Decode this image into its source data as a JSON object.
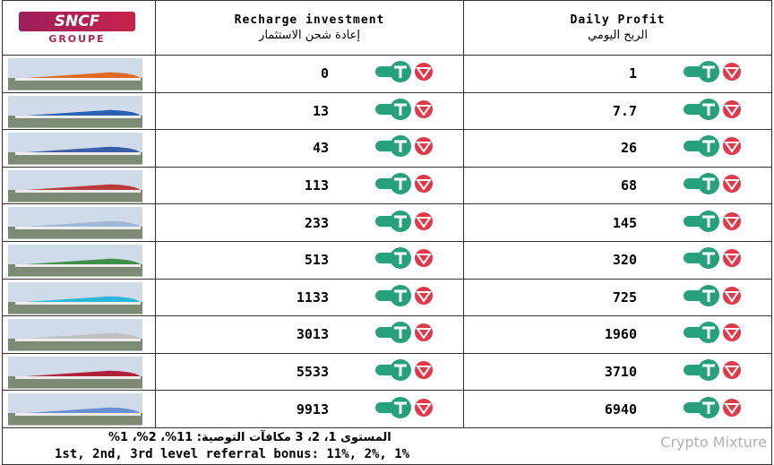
{
  "header": {
    "logo": {
      "brand": "SNCF",
      "sub": "GROUPE"
    },
    "columns": [
      {
        "title": "Recharge investment",
        "subtitle": "إعادة شحن الاستثمار"
      },
      {
        "title": "Daily Profit",
        "subtitle": "الربح اليومي"
      }
    ]
  },
  "table": {
    "rows": [
      [
        "0",
        "1"
      ],
      [
        "13",
        "7.7"
      ],
      [
        "43",
        "26"
      ],
      [
        "113",
        "68"
      ],
      [
        "233",
        "145"
      ],
      [
        "513",
        "320"
      ],
      [
        "1133",
        "725"
      ],
      [
        "3013",
        "1960"
      ],
      [
        "5533",
        "3710"
      ],
      [
        "9913",
        "6940"
      ]
    ]
  },
  "footer": {
    "arabic": "المستوى 1، 2، 3 مكافآت التوصية: 11%، 2%، 1%",
    "english": "1st, 2nd, 3rd level referral bonus: 11%, 2%, 1%"
  },
  "watermark": "Crypto Mixture"
}
